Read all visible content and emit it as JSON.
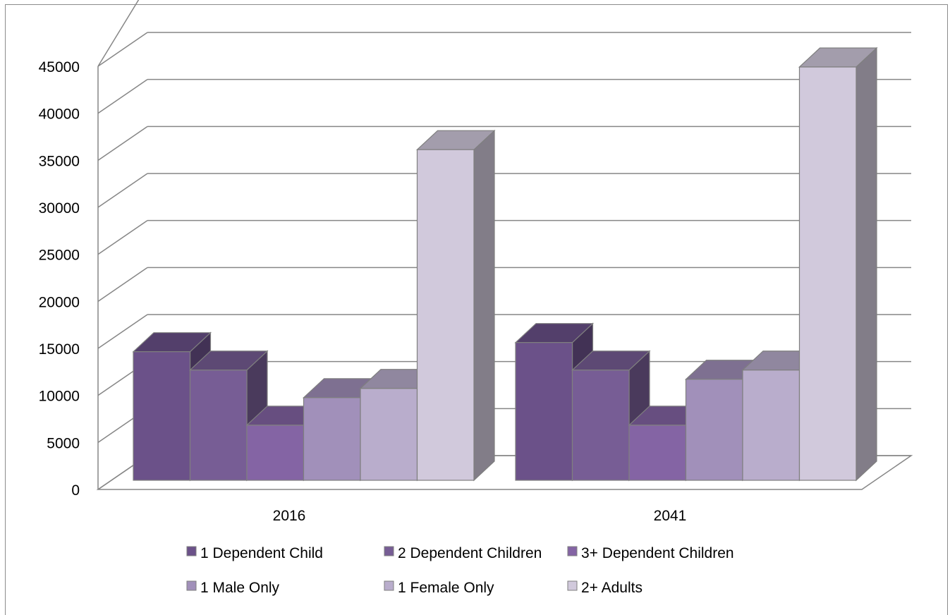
{
  "chart_data": {
    "type": "bar",
    "variant": "3d-clustered-column",
    "title": "",
    "xlabel": "",
    "ylabel": "",
    "categories": [
      "2016",
      "2041"
    ],
    "ylim": [
      0,
      45000
    ],
    "y_ticks": [
      0,
      5000,
      10000,
      15000,
      20000,
      25000,
      30000,
      35000,
      40000,
      45000
    ],
    "grid": true,
    "legend_position": "bottom",
    "series": [
      {
        "name": "1 Dependent Child",
        "values": [
          14000,
          15000
        ],
        "color": "#6b5189"
      },
      {
        "name": "2 Dependent Children",
        "values": [
          12000,
          12000
        ],
        "color": "#775d95"
      },
      {
        "name": "3+ Dependent Children",
        "values": [
          6000,
          6000
        ],
        "color": "#8464a4"
      },
      {
        "name": "1 Male Only",
        "values": [
          9000,
          11000
        ],
        "color": "#a190ba"
      },
      {
        "name": "1 Female Only",
        "values": [
          10000,
          12000
        ],
        "color": "#b9adcc"
      },
      {
        "name": "2+ Adults",
        "values": [
          36000,
          45000
        ],
        "color": "#d1c9dc"
      }
    ]
  }
}
